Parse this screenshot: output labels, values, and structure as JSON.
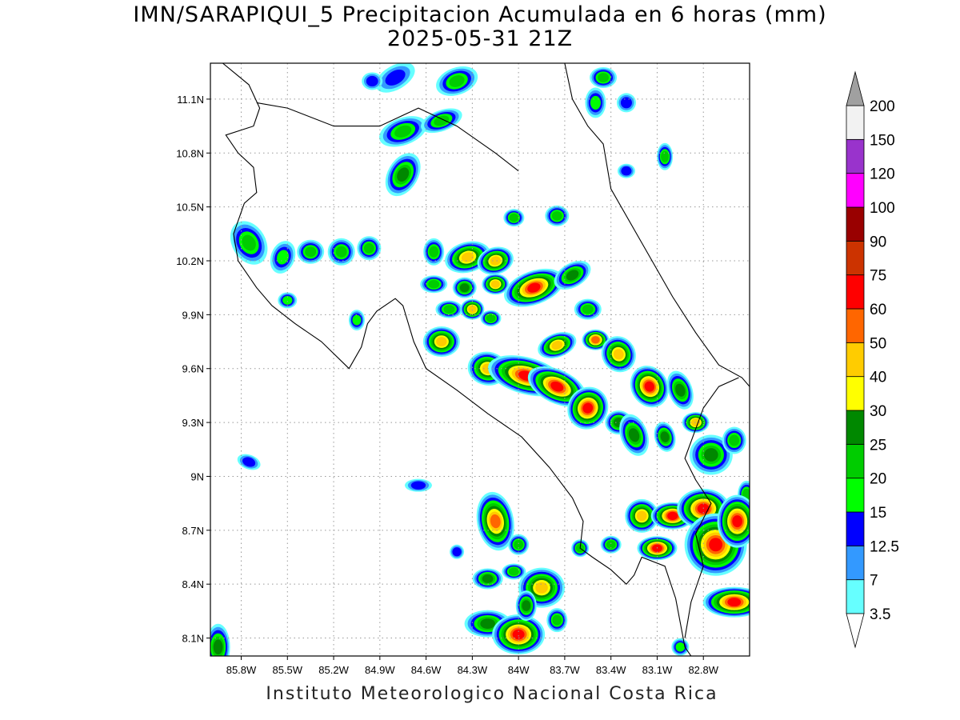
{
  "map": {
    "title_line1": "IMN/SARAPIQUI_5 Precipitacion Acumulada en 6 horas (mm)",
    "title_line2": "2025-05-31 21Z",
    "footer": "Instituto Meteorologico Nacional Costa Rica",
    "lon_range": [
      -86.0,
      -82.5
    ],
    "lat_range": [
      8.0,
      11.3
    ],
    "lat_ticks": [
      {
        "value": 11.1,
        "label": "11.1N"
      },
      {
        "value": 10.8,
        "label": "10.8N"
      },
      {
        "value": 10.5,
        "label": "10.5N"
      },
      {
        "value": 10.2,
        "label": "10.2N"
      },
      {
        "value": 9.9,
        "label": "9.9N"
      },
      {
        "value": 9.6,
        "label": "9.6N"
      },
      {
        "value": 9.3,
        "label": "9.3N"
      },
      {
        "value": 9.0,
        "label": "9N"
      },
      {
        "value": 8.7,
        "label": "8.7N"
      },
      {
        "value": 8.4,
        "label": "8.4N"
      },
      {
        "value": 8.1,
        "label": "8.1N"
      }
    ],
    "lon_ticks": [
      {
        "value": -85.8,
        "label": "85.8W"
      },
      {
        "value": -85.5,
        "label": "85.5W"
      },
      {
        "value": -85.2,
        "label": "85.2W"
      },
      {
        "value": -84.9,
        "label": "84.9W"
      },
      {
        "value": -84.6,
        "label": "84.6W"
      },
      {
        "value": -84.3,
        "label": "84.3W"
      },
      {
        "value": -84.0,
        "label": "84W"
      },
      {
        "value": -83.7,
        "label": "83.7W"
      },
      {
        "value": -83.4,
        "label": "83.4W"
      },
      {
        "value": -83.1,
        "label": "83.1W"
      },
      {
        "value": -82.8,
        "label": "82.8W"
      }
    ]
  },
  "colorbar": {
    "under_color": "#ffffff",
    "over_color": "#a0a0a0",
    "levels": [
      {
        "label": "3.5",
        "color": "#66ffff"
      },
      {
        "label": "7",
        "color": "#3399ff"
      },
      {
        "label": "12.5",
        "color": "#0000ff"
      },
      {
        "label": "15",
        "color": "#00ff00"
      },
      {
        "label": "20",
        "color": "#00cc00"
      },
      {
        "label": "25",
        "color": "#008800"
      },
      {
        "label": "30",
        "color": "#ffff00"
      },
      {
        "label": "40",
        "color": "#ffcc00"
      },
      {
        "label": "50",
        "color": "#ff6600"
      },
      {
        "label": "60",
        "color": "#ff0000"
      },
      {
        "label": "75",
        "color": "#cc3300"
      },
      {
        "label": "90",
        "color": "#990000"
      },
      {
        "label": "100",
        "color": "#ff00ff"
      },
      {
        "label": "120",
        "color": "#9933cc"
      },
      {
        "label": "150",
        "color": "#f2f2f2"
      },
      {
        "label": "200",
        "color": ""
      }
    ]
  },
  "precip_cells": [
    {
      "lon": -85.75,
      "lat": 10.3,
      "rx": 18,
      "ry": 26,
      "angle": -30,
      "level": 4
    },
    {
      "lon": -85.53,
      "lat": 10.22,
      "rx": 12,
      "ry": 18,
      "angle": 20,
      "level": 3
    },
    {
      "lon": -85.35,
      "lat": 10.25,
      "rx": 14,
      "ry": 12,
      "angle": 0,
      "level": 4
    },
    {
      "lon": -85.15,
      "lat": 10.25,
      "rx": 14,
      "ry": 14,
      "angle": 0,
      "level": 4
    },
    {
      "lon": -84.97,
      "lat": 10.27,
      "rx": 12,
      "ry": 12,
      "angle": 0,
      "level": 4
    },
    {
      "lon": -85.5,
      "lat": 9.98,
      "rx": 9,
      "ry": 7,
      "angle": 0,
      "level": 3
    },
    {
      "lon": -85.05,
      "lat": 9.87,
      "rx": 7,
      "ry": 10,
      "angle": 0,
      "level": 3
    },
    {
      "lon": -85.75,
      "lat": 9.08,
      "rx": 12,
      "ry": 6,
      "angle": 20,
      "level": 2
    },
    {
      "lon": -84.65,
      "lat": 8.95,
      "rx": 14,
      "ry": 5,
      "angle": 0,
      "level": 2
    },
    {
      "lon": -84.75,
      "lat": 10.92,
      "rx": 28,
      "ry": 14,
      "angle": -20,
      "level": 4
    },
    {
      "lon": -84.5,
      "lat": 10.98,
      "rx": 24,
      "ry": 10,
      "angle": -20,
      "level": 4
    },
    {
      "lon": -84.75,
      "lat": 10.68,
      "rx": 16,
      "ry": 26,
      "angle": 30,
      "level": 5
    },
    {
      "lon": -84.4,
      "lat": 11.2,
      "rx": 24,
      "ry": 14,
      "angle": -20,
      "level": 4
    },
    {
      "lon": -84.8,
      "lat": 11.22,
      "rx": 24,
      "ry": 12,
      "angle": -30,
      "level": 2
    },
    {
      "lon": -84.95,
      "lat": 11.2,
      "rx": 10,
      "ry": 8,
      "angle": 0,
      "level": 2
    },
    {
      "lon": -83.45,
      "lat": 11.22,
      "rx": 14,
      "ry": 10,
      "angle": 0,
      "level": 4
    },
    {
      "lon": -83.5,
      "lat": 11.08,
      "rx": 10,
      "ry": 16,
      "angle": 0,
      "level": 3
    },
    {
      "lon": -83.3,
      "lat": 11.08,
      "rx": 9,
      "ry": 9,
      "angle": 0,
      "level": 2
    },
    {
      "lon": -83.05,
      "lat": 10.78,
      "rx": 7,
      "ry": 14,
      "angle": 0,
      "level": 4
    },
    {
      "lon": -83.3,
      "lat": 10.7,
      "rx": 8,
      "ry": 6,
      "angle": 0,
      "level": 2
    },
    {
      "lon": -83.75,
      "lat": 10.45,
      "rx": 12,
      "ry": 10,
      "angle": 0,
      "level": 4
    },
    {
      "lon": -84.03,
      "lat": 10.44,
      "rx": 10,
      "ry": 8,
      "angle": 0,
      "level": 4
    },
    {
      "lon": -84.55,
      "lat": 10.25,
      "rx": 10,
      "ry": 14,
      "angle": 0,
      "level": 4
    },
    {
      "lon": -84.33,
      "lat": 10.22,
      "rx": 26,
      "ry": 16,
      "angle": -15,
      "level": 7
    },
    {
      "lon": -84.15,
      "lat": 10.2,
      "rx": 20,
      "ry": 14,
      "angle": -15,
      "level": 7
    },
    {
      "lon": -84.55,
      "lat": 10.07,
      "rx": 14,
      "ry": 8,
      "angle": 0,
      "level": 4
    },
    {
      "lon": -84.35,
      "lat": 10.05,
      "rx": 12,
      "ry": 10,
      "angle": 0,
      "level": 5
    },
    {
      "lon": -84.15,
      "lat": 10.07,
      "rx": 14,
      "ry": 10,
      "angle": 0,
      "level": 7
    },
    {
      "lon": -83.9,
      "lat": 10.05,
      "rx": 36,
      "ry": 18,
      "angle": -20,
      "level": 9
    },
    {
      "lon": -83.65,
      "lat": 10.12,
      "rx": 22,
      "ry": 12,
      "angle": -30,
      "level": 5
    },
    {
      "lon": -84.45,
      "lat": 9.93,
      "rx": 14,
      "ry": 8,
      "angle": 0,
      "level": 4
    },
    {
      "lon": -84.3,
      "lat": 9.93,
      "rx": 12,
      "ry": 10,
      "angle": 0,
      "level": 7
    },
    {
      "lon": -84.18,
      "lat": 9.88,
      "rx": 10,
      "ry": 7,
      "angle": 0,
      "level": 4
    },
    {
      "lon": -84.5,
      "lat": 9.75,
      "rx": 20,
      "ry": 16,
      "angle": 0,
      "level": 7
    },
    {
      "lon": -83.55,
      "lat": 9.93,
      "rx": 14,
      "ry": 10,
      "angle": 0,
      "level": 4
    },
    {
      "lon": -84.2,
      "lat": 9.6,
      "rx": 22,
      "ry": 18,
      "angle": 10,
      "level": 7
    },
    {
      "lon": -83.95,
      "lat": 9.56,
      "rx": 46,
      "ry": 20,
      "angle": 15,
      "level": 9
    },
    {
      "lon": -83.75,
      "lat": 9.5,
      "rx": 36,
      "ry": 18,
      "angle": 25,
      "level": 9
    },
    {
      "lon": -83.55,
      "lat": 9.38,
      "rx": 22,
      "ry": 24,
      "angle": 30,
      "level": 9
    },
    {
      "lon": -83.35,
      "lat": 9.3,
      "rx": 14,
      "ry": 12,
      "angle": 0,
      "level": 5
    },
    {
      "lon": -83.75,
      "lat": 9.73,
      "rx": 22,
      "ry": 12,
      "angle": -20,
      "level": 7
    },
    {
      "lon": -83.5,
      "lat": 9.76,
      "rx": 14,
      "ry": 10,
      "angle": 0,
      "level": 8
    },
    {
      "lon": -83.35,
      "lat": 9.68,
      "rx": 18,
      "ry": 20,
      "angle": -30,
      "level": 7
    },
    {
      "lon": -83.15,
      "lat": 9.5,
      "rx": 20,
      "ry": 24,
      "angle": -30,
      "level": 9
    },
    {
      "lon": -83.25,
      "lat": 9.23,
      "rx": 14,
      "ry": 24,
      "angle": -20,
      "level": 5
    },
    {
      "lon": -82.95,
      "lat": 9.48,
      "rx": 12,
      "ry": 22,
      "angle": -20,
      "level": 5
    },
    {
      "lon": -83.05,
      "lat": 9.22,
      "rx": 10,
      "ry": 16,
      "angle": -15,
      "level": 5
    },
    {
      "lon": -82.85,
      "lat": 9.3,
      "rx": 14,
      "ry": 10,
      "angle": 0,
      "level": 7
    },
    {
      "lon": -82.75,
      "lat": 9.12,
      "rx": 24,
      "ry": 22,
      "angle": 0,
      "level": 5
    },
    {
      "lon": -82.6,
      "lat": 9.2,
      "rx": 12,
      "ry": 14,
      "angle": 0,
      "level": 4
    },
    {
      "lon": -82.52,
      "lat": 8.9,
      "rx": 8,
      "ry": 14,
      "angle": 0,
      "level": 4
    },
    {
      "lon": -84.15,
      "lat": 8.75,
      "rx": 20,
      "ry": 34,
      "angle": -10,
      "level": 8
    },
    {
      "lon": -84.0,
      "lat": 8.62,
      "rx": 10,
      "ry": 10,
      "angle": 0,
      "level": 4
    },
    {
      "lon": -84.2,
      "lat": 8.43,
      "rx": 16,
      "ry": 10,
      "angle": 0,
      "level": 5
    },
    {
      "lon": -84.03,
      "lat": 8.47,
      "rx": 12,
      "ry": 7,
      "angle": 0,
      "level": 4
    },
    {
      "lon": -84.4,
      "lat": 8.58,
      "rx": 6,
      "ry": 6,
      "angle": 0,
      "level": 2
    },
    {
      "lon": -83.85,
      "lat": 8.38,
      "rx": 26,
      "ry": 22,
      "angle": 0,
      "level": 7
    },
    {
      "lon": -84.2,
      "lat": 8.18,
      "rx": 26,
      "ry": 14,
      "angle": 0,
      "level": 5
    },
    {
      "lon": -84.0,
      "lat": 8.12,
      "rx": 30,
      "ry": 22,
      "angle": 0,
      "level": 9
    },
    {
      "lon": -83.95,
      "lat": 8.28,
      "rx": 10,
      "ry": 16,
      "angle": 0,
      "level": 5
    },
    {
      "lon": -83.75,
      "lat": 8.2,
      "rx": 10,
      "ry": 12,
      "angle": 0,
      "level": 4
    },
    {
      "lon": -83.2,
      "lat": 8.78,
      "rx": 18,
      "ry": 18,
      "angle": 0,
      "level": 7
    },
    {
      "lon": -83.0,
      "lat": 8.78,
      "rx": 24,
      "ry": 14,
      "angle": 0,
      "level": 9
    },
    {
      "lon": -83.1,
      "lat": 8.6,
      "rx": 22,
      "ry": 12,
      "angle": 0,
      "level": 9
    },
    {
      "lon": -82.8,
      "lat": 8.82,
      "rx": 30,
      "ry": 22,
      "angle": 0,
      "level": 9
    },
    {
      "lon": -82.72,
      "lat": 8.62,
      "rx": 36,
      "ry": 36,
      "angle": 0,
      "level": 9
    },
    {
      "lon": -82.58,
      "lat": 8.75,
      "rx": 22,
      "ry": 30,
      "angle": 0,
      "level": 9
    },
    {
      "lon": -82.6,
      "lat": 8.3,
      "rx": 36,
      "ry": 16,
      "angle": 0,
      "level": 9
    },
    {
      "lon": -83.4,
      "lat": 8.62,
      "rx": 10,
      "ry": 8,
      "angle": 0,
      "level": 4
    },
    {
      "lon": -83.6,
      "lat": 8.6,
      "rx": 8,
      "ry": 8,
      "angle": 0,
      "level": 4
    },
    {
      "lon": -82.95,
      "lat": 8.05,
      "rx": 8,
      "ry": 8,
      "angle": 0,
      "level": 3
    },
    {
      "lon": -85.95,
      "lat": 8.05,
      "rx": 12,
      "ry": 26,
      "angle": 0,
      "level": 5
    }
  ],
  "outlines": {
    "coast_pacific": [
      [
        -85.92,
        11.3
      ],
      [
        -85.75,
        11.18
      ],
      [
        -85.68,
        11.05
      ],
      [
        -85.72,
        10.95
      ],
      [
        -85.9,
        10.9
      ],
      [
        -85.82,
        10.8
      ],
      [
        -85.72,
        10.72
      ],
      [
        -85.7,
        10.58
      ],
      [
        -85.78,
        10.52
      ],
      [
        -85.85,
        10.35
      ],
      [
        -85.82,
        10.2
      ],
      [
        -85.7,
        10.05
      ],
      [
        -85.6,
        9.95
      ],
      [
        -85.45,
        9.85
      ],
      [
        -85.28,
        9.75
      ],
      [
        -85.1,
        9.6
      ],
      [
        -85.02,
        9.72
      ],
      [
        -84.98,
        9.85
      ],
      [
        -84.92,
        9.92
      ],
      [
        -84.8,
        9.99
      ],
      [
        -84.75,
        9.95
      ],
      [
        -84.68,
        9.75
      ],
      [
        -84.6,
        9.6
      ],
      [
        -84.4,
        9.48
      ],
      [
        -84.2,
        9.35
      ],
      [
        -83.98,
        9.22
      ],
      [
        -83.8,
        9.05
      ],
      [
        -83.65,
        8.88
      ],
      [
        -83.58,
        8.75
      ],
      [
        -83.6,
        8.6
      ],
      [
        -83.52,
        8.55
      ],
      [
        -83.4,
        8.48
      ],
      [
        -83.3,
        8.4
      ],
      [
        -83.25,
        8.45
      ],
      [
        -83.2,
        8.55
      ],
      [
        -83.05,
        8.5
      ],
      [
        -82.98,
        8.32
      ],
      [
        -82.92,
        8.05
      ],
      [
        -82.88,
        8.0
      ]
    ],
    "coast_caribbean": [
      [
        -83.7,
        11.3
      ],
      [
        -83.65,
        11.1
      ],
      [
        -83.55,
        10.95
      ],
      [
        -83.45,
        10.85
      ],
      [
        -83.4,
        10.6
      ],
      [
        -83.2,
        10.3
      ],
      [
        -83.0,
        10.0
      ],
      [
        -82.85,
        9.8
      ],
      [
        -82.7,
        9.62
      ],
      [
        -82.55,
        9.55
      ],
      [
        -82.5,
        9.5
      ]
    ],
    "border_north": [
      [
        -85.7,
        11.08
      ],
      [
        -85.5,
        11.05
      ],
      [
        -85.2,
        10.95
      ],
      [
        -84.9,
        10.95
      ],
      [
        -84.65,
        11.05
      ],
      [
        -84.4,
        10.95
      ],
      [
        -84.15,
        10.8
      ],
      [
        -84.0,
        10.7
      ]
    ],
    "border_panama": [
      [
        -82.57,
        9.55
      ],
      [
        -82.7,
        9.5
      ],
      [
        -82.8,
        9.38
      ],
      [
        -82.92,
        9.1
      ],
      [
        -82.85,
        8.98
      ],
      [
        -82.75,
        8.85
      ],
      [
        -82.85,
        8.68
      ],
      [
        -82.8,
        8.5
      ],
      [
        -82.88,
        8.3
      ],
      [
        -82.92,
        8.1
      ]
    ]
  }
}
